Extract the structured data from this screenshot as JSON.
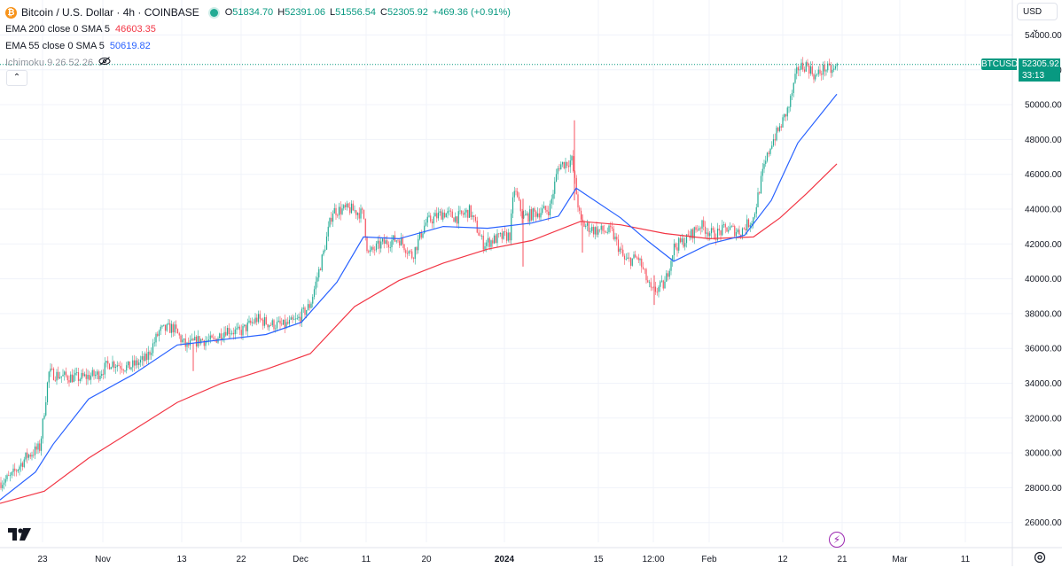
{
  "header": {
    "coin_glyph": "₿",
    "title": "Bitcoin / U.S. Dollar · 4h · COINBASE",
    "ohlc": {
      "o_label": "O",
      "o": "51834.70",
      "h_label": "H",
      "h": "52391.06",
      "l_label": "L",
      "l": "51556.54",
      "c_label": "C",
      "c": "52305.92",
      "change": "+469.36 (+0.91%)"
    },
    "indicators": [
      {
        "name": "EMA 200 close 0 SMA 5",
        "value": "46603.35",
        "color": "#f23645"
      },
      {
        "name": "EMA 55 close 0 SMA 5",
        "value": "50619.82",
        "color": "#2962ff"
      }
    ],
    "ichimoku": "Ichimoku 9 26 52 26",
    "collapse_glyph": "⌃"
  },
  "toolbar": {
    "currency": "USD",
    "currency_chevron": "⌄"
  },
  "price_badge": {
    "symbol": "BTCUSD",
    "price": "52305.92",
    "timer": "33:13"
  },
  "colors": {
    "up": "#22ab94",
    "down": "#f7525f",
    "ema200": "#f23645",
    "ema55": "#2962ff",
    "grid": "#f0f3fa",
    "text": "#131722"
  },
  "chart_data": {
    "type": "candlestick",
    "symbol": "BTCUSD",
    "timeframe": "4h",
    "ylim": [
      25000,
      54800
    ],
    "y_ticks": [
      "54000.00",
      "52000.00",
      "50000.00",
      "48000.00",
      "46000.00",
      "44000.00",
      "42000.00",
      "40000.00",
      "38000.00",
      "36000.00",
      "34000.00",
      "32000.00",
      "30000.00",
      "28000.00",
      "26000.00"
    ],
    "x_ticks": [
      "23",
      "Nov",
      "13",
      "22",
      "Dec",
      "11",
      "20",
      "2024",
      "15",
      "12:00",
      "Feb",
      "12",
      "21",
      "Mar",
      "11"
    ],
    "last_price": 52305.92,
    "price_path": [
      {
        "x": 0,
        "y": 28300
      },
      {
        "x": 12,
        "y": 28600
      },
      {
        "x": 30,
        "y": 29800
      },
      {
        "x": 45,
        "y": 30300
      },
      {
        "x": 55,
        "y": 34600
      },
      {
        "x": 70,
        "y": 34400
      },
      {
        "x": 90,
        "y": 34300
      },
      {
        "x": 110,
        "y": 34500
      },
      {
        "x": 125,
        "y": 35200
      },
      {
        "x": 145,
        "y": 34900
      },
      {
        "x": 165,
        "y": 35400
      },
      {
        "x": 180,
        "y": 37000
      },
      {
        "x": 195,
        "y": 37200
      },
      {
        "x": 210,
        "y": 36100
      },
      {
        "x": 225,
        "y": 36500
      },
      {
        "x": 240,
        "y": 36400
      },
      {
        "x": 255,
        "y": 37100
      },
      {
        "x": 270,
        "y": 36900
      },
      {
        "x": 290,
        "y": 37700
      },
      {
        "x": 305,
        "y": 37400
      },
      {
        "x": 320,
        "y": 37300
      },
      {
        "x": 335,
        "y": 37600
      },
      {
        "x": 350,
        "y": 38500
      },
      {
        "x": 365,
        "y": 41500
      },
      {
        "x": 375,
        "y": 43900
      },
      {
        "x": 395,
        "y": 44000
      },
      {
        "x": 410,
        "y": 43700
      },
      {
        "x": 415,
        "y": 41400
      },
      {
        "x": 430,
        "y": 42000
      },
      {
        "x": 450,
        "y": 42300
      },
      {
        "x": 465,
        "y": 41300
      },
      {
        "x": 480,
        "y": 43200
      },
      {
        "x": 500,
        "y": 43800
      },
      {
        "x": 515,
        "y": 43500
      },
      {
        "x": 530,
        "y": 43900
      },
      {
        "x": 545,
        "y": 42000
      },
      {
        "x": 560,
        "y": 42300
      },
      {
        "x": 575,
        "y": 42500
      },
      {
        "x": 580,
        "y": 45200
      },
      {
        "x": 590,
        "y": 43500
      },
      {
        "x": 605,
        "y": 43800
      },
      {
        "x": 620,
        "y": 44000
      },
      {
        "x": 630,
        "y": 46500
      },
      {
        "x": 645,
        "y": 46800
      },
      {
        "x": 655,
        "y": 43200
      },
      {
        "x": 670,
        "y": 42800
      },
      {
        "x": 690,
        "y": 42700
      },
      {
        "x": 705,
        "y": 41000
      },
      {
        "x": 720,
        "y": 41200
      },
      {
        "x": 735,
        "y": 39200
      },
      {
        "x": 750,
        "y": 39700
      },
      {
        "x": 760,
        "y": 41800
      },
      {
        "x": 775,
        "y": 42300
      },
      {
        "x": 790,
        "y": 43100
      },
      {
        "x": 805,
        "y": 42500
      },
      {
        "x": 820,
        "y": 42900
      },
      {
        "x": 835,
        "y": 42700
      },
      {
        "x": 850,
        "y": 43500
      },
      {
        "x": 860,
        "y": 46000
      },
      {
        "x": 870,
        "y": 47800
      },
      {
        "x": 880,
        "y": 48700
      },
      {
        "x": 890,
        "y": 49900
      },
      {
        "x": 900,
        "y": 52100
      },
      {
        "x": 910,
        "y": 52300
      },
      {
        "x": 920,
        "y": 51600
      },
      {
        "x": 930,
        "y": 52100
      },
      {
        "x": 940,
        "y": 51900
      },
      {
        "x": 945,
        "y": 52305
      }
    ],
    "spikes": [
      {
        "x": 590,
        "high": 44600,
        "low": 40700
      },
      {
        "x": 648,
        "high": 49100,
        "low": 44500
      },
      {
        "x": 657,
        "high": 43700,
        "low": 41500
      },
      {
        "x": 738,
        "high": 40200,
        "low": 38500
      },
      {
        "x": 218,
        "high": 36300,
        "low": 34700
      }
    ],
    "series": [
      {
        "name": "EMA 200 close 0 SMA 5",
        "color": "#f23645",
        "points": [
          {
            "x": 0,
            "y": 27100
          },
          {
            "x": 50,
            "y": 27800
          },
          {
            "x": 100,
            "y": 29700
          },
          {
            "x": 150,
            "y": 31300
          },
          {
            "x": 200,
            "y": 32900
          },
          {
            "x": 250,
            "y": 34000
          },
          {
            "x": 300,
            "y": 34800
          },
          {
            "x": 350,
            "y": 35700
          },
          {
            "x": 400,
            "y": 38400
          },
          {
            "x": 450,
            "y": 39900
          },
          {
            "x": 500,
            "y": 40900
          },
          {
            "x": 550,
            "y": 41700
          },
          {
            "x": 600,
            "y": 42200
          },
          {
            "x": 655,
            "y": 43300
          },
          {
            "x": 700,
            "y": 43100
          },
          {
            "x": 750,
            "y": 42600
          },
          {
            "x": 800,
            "y": 42300
          },
          {
            "x": 850,
            "y": 42400
          },
          {
            "x": 880,
            "y": 43500
          },
          {
            "x": 910,
            "y": 44900
          },
          {
            "x": 944,
            "y": 46600
          }
        ]
      },
      {
        "name": "EMA 55 close 0 SMA 5",
        "color": "#2962ff",
        "points": [
          {
            "x": 0,
            "y": 27300
          },
          {
            "x": 40,
            "y": 28900
          },
          {
            "x": 60,
            "y": 30500
          },
          {
            "x": 100,
            "y": 33100
          },
          {
            "x": 150,
            "y": 34500
          },
          {
            "x": 200,
            "y": 36200
          },
          {
            "x": 250,
            "y": 36500
          },
          {
            "x": 300,
            "y": 36800
          },
          {
            "x": 340,
            "y": 37500
          },
          {
            "x": 380,
            "y": 39800
          },
          {
            "x": 410,
            "y": 42400
          },
          {
            "x": 450,
            "y": 42300
          },
          {
            "x": 500,
            "y": 43000
          },
          {
            "x": 550,
            "y": 42900
          },
          {
            "x": 600,
            "y": 43200
          },
          {
            "x": 630,
            "y": 43600
          },
          {
            "x": 650,
            "y": 45200
          },
          {
            "x": 700,
            "y": 43500
          },
          {
            "x": 730,
            "y": 42200
          },
          {
            "x": 760,
            "y": 41000
          },
          {
            "x": 800,
            "y": 42000
          },
          {
            "x": 840,
            "y": 42500
          },
          {
            "x": 870,
            "y": 44500
          },
          {
            "x": 900,
            "y": 47800
          },
          {
            "x": 944,
            "y": 50600
          }
        ]
      }
    ]
  }
}
